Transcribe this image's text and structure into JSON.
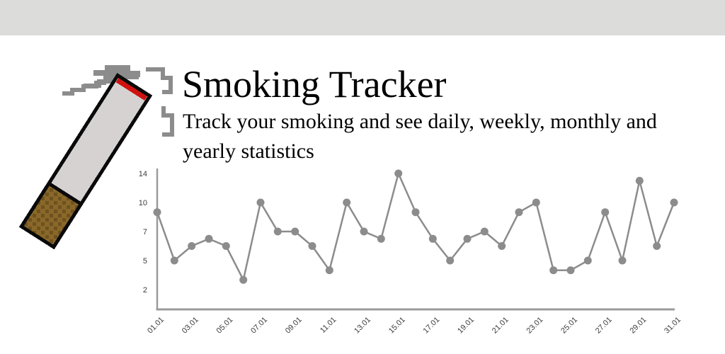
{
  "window": {
    "chrome_bar_color": "#dcdcda",
    "background_color": "#ffffff"
  },
  "header": {
    "title": "Smoking Tracker",
    "subtitle": "Track your smoking and see daily, weekly, monthly and yearly statistics"
  },
  "logo": {
    "icon": "pixel-cigarette-with-smoke-icon",
    "colors": {
      "body": "#d5d2d1",
      "filter": "#8a682a",
      "filter_dots": "#6e521e",
      "ember": "#cf1210",
      "outline": "#0a0a0a",
      "smoke": "#8c8c8c"
    }
  },
  "chart_data": {
    "type": "line",
    "title": "",
    "xlabel": "",
    "ylabel": "",
    "grid": false,
    "legend": false,
    "y_axis_nonlinear_note": "tick values 2,5,7,10,14 are evenly spaced in pixels",
    "y_ticks": [
      2,
      5,
      7,
      10,
      14
    ],
    "ylim": [
      2,
      14
    ],
    "x_tick_labels": [
      "01.01",
      "03.01",
      "05.01",
      "07.01",
      "09.01",
      "11.01",
      "13.01",
      "15.01",
      "17.01",
      "19.01",
      "21.01",
      "23.01",
      "25.01",
      "27.01",
      "29.01",
      "31.01"
    ],
    "categories": [
      "01.01",
      "02.01",
      "03.01",
      "04.01",
      "05.01",
      "06.01",
      "07.01",
      "08.01",
      "09.01",
      "10.01",
      "11.01",
      "12.01",
      "13.01",
      "14.01",
      "15.01",
      "16.01",
      "17.01",
      "18.01",
      "19.01",
      "20.01",
      "21.01",
      "22.01",
      "23.01",
      "24.01",
      "25.01",
      "26.01",
      "27.01",
      "28.01",
      "29.01",
      "30.01",
      "31.01"
    ],
    "values": [
      9,
      5,
      6,
      6.5,
      6,
      3,
      10,
      7,
      7,
      6,
      4,
      10,
      7,
      6.5,
      14,
      9,
      6.5,
      5,
      6.5,
      7,
      6,
      9,
      10,
      4,
      4,
      5,
      9,
      5,
      13,
      6,
      10
    ],
    "line_color": "#8c8c8c",
    "point_color": "#8c8c8c",
    "axis_color": "#9b9b9b",
    "tick_text_color": "#3c3c3c"
  }
}
